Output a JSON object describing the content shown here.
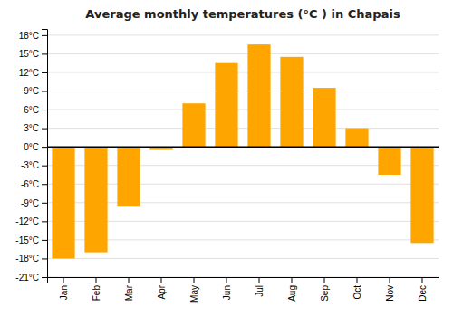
{
  "chart_data": {
    "type": "bar",
    "title": "Average monthly temperatures (°C ) in Chapais",
    "categories": [
      "Jan",
      "Feb",
      "Mar",
      "Apr",
      "May",
      "Jun",
      "Jul",
      "Aug",
      "Sep",
      "Oct",
      "Nov",
      "Dec"
    ],
    "values": [
      -18,
      -17,
      -9.5,
      -0.5,
      7,
      13.5,
      16.5,
      14.5,
      9.5,
      3,
      -4.5,
      -15.5
    ],
    "color": "#FFA500",
    "ylim": [
      -21,
      19
    ],
    "yticks": [
      {
        "value": -21,
        "label": "-21°C"
      },
      {
        "value": -18,
        "label": "-18°C"
      },
      {
        "value": -15,
        "label": "-15°C"
      },
      {
        "value": -12,
        "label": "-12°C"
      },
      {
        "value": -9,
        "label": "-9°C"
      },
      {
        "value": -6,
        "label": "-6°C"
      },
      {
        "value": -3,
        "label": "-3°C"
      },
      {
        "value": 0,
        "label": "0°C"
      },
      {
        "value": 3,
        "label": "3°C"
      },
      {
        "value": 6,
        "label": "6°C"
      },
      {
        "value": 9,
        "label": "9°C"
      },
      {
        "value": 12,
        "label": "12°C"
      },
      {
        "value": 15,
        "label": "15°C"
      },
      {
        "value": 18,
        "label": "18°C"
      }
    ],
    "grid": true
  }
}
